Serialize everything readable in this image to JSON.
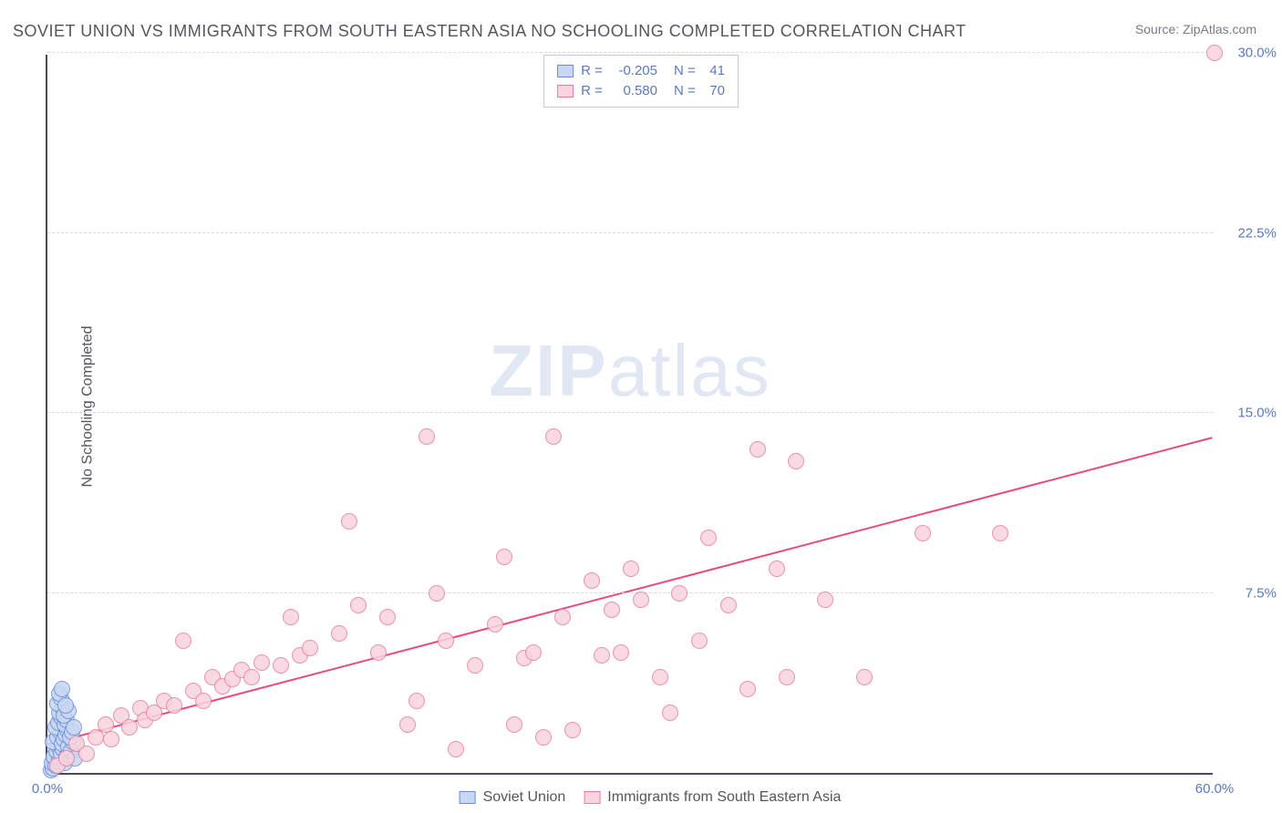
{
  "title": "SOVIET UNION VS IMMIGRANTS FROM SOUTH EASTERN ASIA NO SCHOOLING COMPLETED CORRELATION CHART",
  "source_label": "Source:",
  "source_site": "ZipAtlas.com",
  "ylabel": "No Schooling Completed",
  "watermark": {
    "zip": "ZIP",
    "atlas": "atlas"
  },
  "chart": {
    "type": "scatter",
    "xlim": [
      0,
      60
    ],
    "ylim": [
      0,
      30
    ],
    "xticks": [
      {
        "v": 0,
        "label": "0.0%"
      },
      {
        "v": 60,
        "label": "60.0%"
      }
    ],
    "yticks": [
      {
        "v": 7.5,
        "label": "7.5%"
      },
      {
        "v": 15.0,
        "label": "15.0%"
      },
      {
        "v": 22.5,
        "label": "22.5%"
      },
      {
        "v": 30.0,
        "label": "30.0%"
      }
    ],
    "grid_color": "#d8d8e0",
    "axis_color": "#4a4a55",
    "background_color": "#ffffff",
    "marker_radius": 9,
    "marker_border_width": 1.5,
    "series": [
      {
        "name": "Soviet Union",
        "fill": "#c9d7f2",
        "stroke": "#6a8fd8",
        "R": "-0.205",
        "N": "41",
        "trend": null,
        "points": [
          [
            0.2,
            0.1
          ],
          [
            0.3,
            0.2
          ],
          [
            0.25,
            0.4
          ],
          [
            0.4,
            0.3
          ],
          [
            0.5,
            0.5
          ],
          [
            0.35,
            0.7
          ],
          [
            0.6,
            0.6
          ],
          [
            0.45,
            0.9
          ],
          [
            0.55,
            1.1
          ],
          [
            0.7,
            0.8
          ],
          [
            0.3,
            1.3
          ],
          [
            0.8,
            1.0
          ],
          [
            0.5,
            1.5
          ],
          [
            0.9,
            0.4
          ],
          [
            0.65,
            1.7
          ],
          [
            0.75,
            1.2
          ],
          [
            0.4,
            1.9
          ],
          [
            1.0,
            0.7
          ],
          [
            0.85,
            1.4
          ],
          [
            0.55,
            2.1
          ],
          [
            1.1,
            1.1
          ],
          [
            0.7,
            2.3
          ],
          [
            0.95,
            1.6
          ],
          [
            1.2,
            0.9
          ],
          [
            0.6,
            2.5
          ],
          [
            1.05,
            1.8
          ],
          [
            0.8,
            2.7
          ],
          [
            1.3,
            1.3
          ],
          [
            0.9,
            2.0
          ],
          [
            1.15,
            1.5
          ],
          [
            0.5,
            2.9
          ],
          [
            1.4,
            0.6
          ],
          [
            1.0,
            2.2
          ],
          [
            0.7,
            3.1
          ],
          [
            1.25,
            1.7
          ],
          [
            0.85,
            2.4
          ],
          [
            1.1,
            2.6
          ],
          [
            0.6,
            3.3
          ],
          [
            1.35,
            1.9
          ],
          [
            0.95,
            2.8
          ],
          [
            0.75,
            3.5
          ]
        ]
      },
      {
        "name": "Immigrants from South Eastern Asia",
        "fill": "#f9d4de",
        "stroke": "#e87fa0",
        "R": "0.580",
        "N": "70",
        "trend": {
          "x1": 0,
          "y1": 1.2,
          "x2": 60,
          "y2": 14.0,
          "color": "#e84b7a",
          "width": 2
        },
        "points": [
          [
            0.5,
            0.3
          ],
          [
            1.0,
            0.6
          ],
          [
            1.5,
            1.2
          ],
          [
            2.0,
            0.8
          ],
          [
            2.5,
            1.5
          ],
          [
            3.0,
            2.0
          ],
          [
            3.3,
            1.4
          ],
          [
            3.8,
            2.4
          ],
          [
            4.2,
            1.9
          ],
          [
            4.8,
            2.7
          ],
          [
            5.0,
            2.2
          ],
          [
            5.5,
            2.5
          ],
          [
            6.0,
            3.0
          ],
          [
            6.5,
            2.8
          ],
          [
            7.0,
            5.5
          ],
          [
            7.5,
            3.4
          ],
          [
            8.0,
            3.0
          ],
          [
            8.5,
            4.0
          ],
          [
            9.0,
            3.6
          ],
          [
            9.5,
            3.9
          ],
          [
            10.0,
            4.3
          ],
          [
            10.5,
            4.0
          ],
          [
            11.0,
            4.6
          ],
          [
            12.0,
            4.5
          ],
          [
            12.5,
            6.5
          ],
          [
            13.0,
            4.9
          ],
          [
            13.5,
            5.2
          ],
          [
            15.0,
            5.8
          ],
          [
            15.5,
            10.5
          ],
          [
            16.0,
            7.0
          ],
          [
            17.0,
            5.0
          ],
          [
            17.5,
            6.5
          ],
          [
            18.5,
            2.0
          ],
          [
            19.0,
            3.0
          ],
          [
            19.5,
            14.0
          ],
          [
            20.0,
            7.5
          ],
          [
            20.5,
            5.5
          ],
          [
            21.0,
            1.0
          ],
          [
            22.0,
            4.5
          ],
          [
            23.0,
            6.2
          ],
          [
            23.5,
            9.0
          ],
          [
            24.0,
            2.0
          ],
          [
            24.5,
            4.8
          ],
          [
            25.0,
            5.0
          ],
          [
            25.5,
            1.5
          ],
          [
            26.0,
            14.0
          ],
          [
            26.5,
            6.5
          ],
          [
            27.0,
            1.8
          ],
          [
            28.0,
            8.0
          ],
          [
            28.5,
            4.9
          ],
          [
            29.0,
            6.8
          ],
          [
            29.5,
            5.0
          ],
          [
            30.0,
            8.5
          ],
          [
            30.5,
            7.2
          ],
          [
            31.5,
            4.0
          ],
          [
            32.0,
            2.5
          ],
          [
            32.5,
            7.5
          ],
          [
            33.5,
            5.5
          ],
          [
            34.0,
            9.8
          ],
          [
            35.0,
            7.0
          ],
          [
            36.0,
            3.5
          ],
          [
            36.5,
            13.5
          ],
          [
            37.5,
            8.5
          ],
          [
            38.0,
            4.0
          ],
          [
            38.5,
            13.0
          ],
          [
            40.0,
            7.2
          ],
          [
            42.0,
            4.0
          ],
          [
            45.0,
            10.0
          ],
          [
            49.0,
            10.0
          ],
          [
            60.0,
            30.0
          ]
        ]
      }
    ]
  },
  "legend_top_labels": {
    "R": "R =",
    "N": "N ="
  },
  "legend_bottom": [
    {
      "label": "Soviet Union",
      "fill": "#c9d7f2",
      "stroke": "#6a8fd8"
    },
    {
      "label": "Immigrants from South Eastern Asia",
      "fill": "#f9d4de",
      "stroke": "#e87fa0"
    }
  ]
}
